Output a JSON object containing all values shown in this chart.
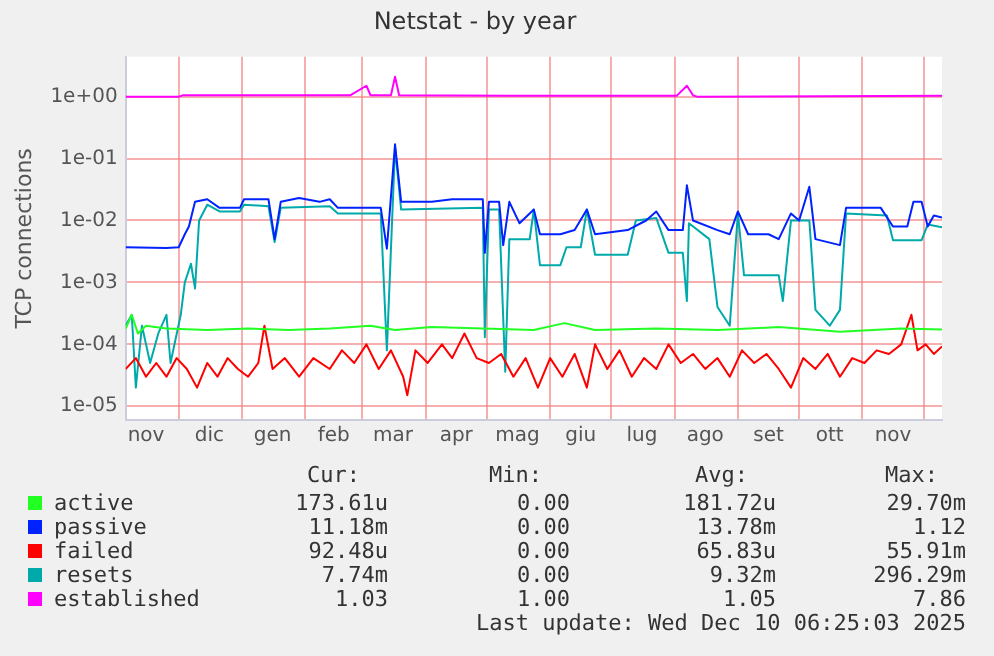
{
  "chart_data": {
    "type": "line",
    "title": "Netstat - by year",
    "ylabel": "TCP connections",
    "log": "y",
    "grid": true,
    "legend": "bottom",
    "marker": "none",
    "line_style": "solid",
    "xlim": [
      "2024-11-05",
      "2025-12-10"
    ],
    "xticks": [
      {
        "value": "2024-11-15",
        "label": "nov"
      },
      {
        "value": "2024-12-01",
        "label": null
      },
      {
        "value": "2024-12-16",
        "label": "dic"
      },
      {
        "value": "2025-01-01",
        "label": null
      },
      {
        "value": "2025-01-16",
        "label": "gen"
      },
      {
        "value": "2025-02-01",
        "label": null
      },
      {
        "value": "2025-02-15",
        "label": "feb"
      },
      {
        "value": "2025-03-01",
        "label": null
      },
      {
        "value": "2025-03-16",
        "label": "mar"
      },
      {
        "value": "2025-04-01",
        "label": null
      },
      {
        "value": "2025-04-16",
        "label": "apr"
      },
      {
        "value": "2025-05-01",
        "label": null
      },
      {
        "value": "2025-05-16",
        "label": "mag"
      },
      {
        "value": "2025-06-01",
        "label": null
      },
      {
        "value": "2025-06-16",
        "label": "giu"
      },
      {
        "value": "2025-07-01",
        "label": null
      },
      {
        "value": "2025-07-16",
        "label": "lug"
      },
      {
        "value": "2025-08-01",
        "label": null
      },
      {
        "value": "2025-08-16",
        "label": "ago"
      },
      {
        "value": "2025-09-01",
        "label": null
      },
      {
        "value": "2025-09-16",
        "label": "set"
      },
      {
        "value": "2025-10-01",
        "label": null
      },
      {
        "value": "2025-10-16",
        "label": "ott"
      },
      {
        "value": "2025-11-01",
        "label": null
      },
      {
        "value": "2025-11-16",
        "label": "nov"
      },
      {
        "value": "2025-12-01",
        "label": null
      }
    ],
    "ylim": [
      6e-06,
      4.4
    ],
    "yticks": [
      {
        "value": 1e-05,
        "label": "1e-05"
      },
      {
        "value": 0.0001,
        "label": "1e-04"
      },
      {
        "value": 0.001,
        "label": "1e-03"
      },
      {
        "value": 0.01,
        "label": "1e-02"
      },
      {
        "value": 0.1,
        "label": "1e-01"
      },
      {
        "value": 1,
        "label": "1e+00"
      }
    ],
    "series": [
      {
        "name": "active",
        "color": "#22ff22",
        "x": [
          "2024-11-05",
          "2024-11-08",
          "2024-11-11",
          "2024-11-15",
          "2024-11-25",
          "2024-12-15",
          "2025-01-04",
          "2025-01-24",
          "2025-02-13",
          "2025-03-05",
          "2025-03-17",
          "2025-04-04",
          "2025-04-29",
          "2025-05-24",
          "2025-06-08",
          "2025-06-23",
          "2025-07-23",
          "2025-08-22",
          "2025-09-21",
          "2025-10-21",
          "2025-11-20",
          "2025-12-10"
        ],
        "values": [
          0.00018,
          0.0003,
          0.00015,
          0.0002,
          0.00018,
          0.00017,
          0.00018,
          0.00017,
          0.00018,
          0.0002,
          0.00017,
          0.00019,
          0.00018,
          0.00017,
          0.00022,
          0.00017,
          0.00018,
          0.00017,
          0.00019,
          0.00016,
          0.00018,
          0.000174
        ]
      },
      {
        "name": "passive",
        "color": "#0022ff",
        "x": [
          "2024-11-05",
          "2024-11-25",
          "2024-12-01",
          "2024-12-04",
          "2024-12-06",
          "2024-12-09",
          "2024-12-15",
          "2024-12-21",
          "2024-12-31",
          "2025-01-02",
          "2025-01-14",
          "2025-01-17",
          "2025-01-20",
          "2025-01-29",
          "2025-02-08",
          "2025-02-13",
          "2025-02-17",
          "2025-03-10",
          "2025-03-13",
          "2025-03-17",
          "2025-03-20",
          "2025-04-04",
          "2025-04-14",
          "2025-04-29",
          "2025-04-30",
          "2025-05-02",
          "2025-05-07",
          "2025-05-09",
          "2025-05-12",
          "2025-05-17",
          "2025-05-24",
          "2025-05-27",
          "2025-06-06",
          "2025-06-13",
          "2025-06-19",
          "2025-06-23",
          "2025-07-09",
          "2025-07-18",
          "2025-07-23",
          "2025-07-29",
          "2025-08-05",
          "2025-08-07",
          "2025-08-10",
          "2025-08-22",
          "2025-08-28",
          "2025-09-01",
          "2025-09-06",
          "2025-09-16",
          "2025-09-21",
          "2025-09-27",
          "2025-10-01",
          "2025-10-06",
          "2025-10-09",
          "2025-10-21",
          "2025-10-24",
          "2025-11-10",
          "2025-11-16",
          "2025-11-23",
          "2025-11-26",
          "2025-11-30",
          "2025-12-03",
          "2025-12-06",
          "2025-12-10"
        ],
        "values": [
          0.0037,
          0.0036,
          0.0037,
          0.006,
          0.008,
          0.02,
          0.022,
          0.016,
          0.016,
          0.022,
          0.022,
          0.005,
          0.02,
          0.023,
          0.02,
          0.022,
          0.016,
          0.016,
          0.0035,
          0.17,
          0.02,
          0.02,
          0.022,
          0.022,
          0.003,
          0.02,
          0.02,
          0.004,
          0.02,
          0.009,
          0.015,
          0.006,
          0.006,
          0.007,
          0.015,
          0.006,
          0.007,
          0.01,
          0.014,
          0.007,
          0.007,
          0.037,
          0.01,
          0.007,
          0.006,
          0.014,
          0.006,
          0.006,
          0.005,
          0.013,
          0.01,
          0.035,
          0.005,
          0.004,
          0.016,
          0.016,
          0.008,
          0.008,
          0.02,
          0.02,
          0.008,
          0.012,
          0.0112
        ]
      },
      {
        "name": "failed",
        "color": "#ff0000",
        "x": [
          "2024-11-05",
          "2024-11-10",
          "2024-11-15",
          "2024-11-20",
          "2024-11-25",
          "2024-11-30",
          "2024-12-05",
          "2024-12-10",
          "2024-12-15",
          "2024-12-20",
          "2024-12-25",
          "2024-12-30",
          "2025-01-04",
          "2025-01-09",
          "2025-01-12",
          "2025-01-16",
          "2025-01-22",
          "2025-01-29",
          "2025-02-05",
          "2025-02-13",
          "2025-02-19",
          "2025-02-25",
          "2025-03-03",
          "2025-03-09",
          "2025-03-15",
          "2025-03-21",
          "2025-03-23",
          "2025-03-27",
          "2025-04-02",
          "2025-04-09",
          "2025-04-14",
          "2025-04-20",
          "2025-04-26",
          "2025-05-02",
          "2025-05-08",
          "2025-05-14",
          "2025-05-20",
          "2025-05-26",
          "2025-06-01",
          "2025-06-07",
          "2025-06-13",
          "2025-06-19",
          "2025-06-23",
          "2025-06-29",
          "2025-07-05",
          "2025-07-11",
          "2025-07-17",
          "2025-07-23",
          "2025-07-29",
          "2025-08-04",
          "2025-08-10",
          "2025-08-16",
          "2025-08-22",
          "2025-08-28",
          "2025-09-03",
          "2025-09-09",
          "2025-09-15",
          "2025-09-21",
          "2025-09-27",
          "2025-10-03",
          "2025-10-09",
          "2025-10-15",
          "2025-10-21",
          "2025-10-27",
          "2025-11-02",
          "2025-11-08",
          "2025-11-14",
          "2025-11-20",
          "2025-11-25",
          "2025-11-28",
          "2025-12-02",
          "2025-12-06",
          "2025-12-10"
        ],
        "values": [
          4e-05,
          6e-05,
          3e-05,
          5e-05,
          3e-05,
          6e-05,
          4e-05,
          2e-05,
          5e-05,
          3e-05,
          6e-05,
          4e-05,
          3e-05,
          5e-05,
          0.0002,
          4e-05,
          6e-05,
          3e-05,
          6e-05,
          4e-05,
          8e-05,
          5e-05,
          0.0001,
          4e-05,
          8e-05,
          3e-05,
          1.5e-05,
          8e-05,
          5e-05,
          0.0001,
          6e-05,
          0.00015,
          6e-05,
          5e-05,
          7e-05,
          3e-05,
          6e-05,
          2e-05,
          6e-05,
          3e-05,
          7e-05,
          2e-05,
          0.0001,
          4e-05,
          8e-05,
          3e-05,
          6e-05,
          4e-05,
          0.0001,
          5e-05,
          7e-05,
          4e-05,
          6e-05,
          3e-05,
          8e-05,
          5e-05,
          7e-05,
          4e-05,
          2e-05,
          6e-05,
          4e-05,
          7e-05,
          3e-05,
          6e-05,
          5e-05,
          8e-05,
          7e-05,
          0.0001,
          0.0003,
          8e-05,
          0.0001,
          7e-05,
          9.25e-05
        ]
      },
      {
        "name": "resets",
        "color": "#00aaaa",
        "x": [
          "2024-11-05",
          "2024-11-08",
          "2024-11-10",
          "2024-11-13",
          "2024-11-17",
          "2024-11-21",
          "2024-11-25",
          "2024-11-27",
          "2024-12-02",
          "2024-12-04",
          "2024-12-07",
          "2024-12-09",
          "2024-12-11",
          "2024-12-15",
          "2024-12-21",
          "2024-12-31",
          "2025-01-02",
          "2025-01-14",
          "2025-01-17",
          "2025-01-20",
          "2025-02-13",
          "2025-02-17",
          "2025-03-10",
          "2025-03-13",
          "2025-03-17",
          "2025-03-20",
          "2025-04-29",
          "2025-04-30",
          "2025-05-02",
          "2025-05-07",
          "2025-05-10",
          "2025-05-12",
          "2025-05-22",
          "2025-05-24",
          "2025-05-27",
          "2025-06-06",
          "2025-06-09",
          "2025-06-16",
          "2025-06-19",
          "2025-06-23",
          "2025-07-09",
          "2025-07-13",
          "2025-07-23",
          "2025-07-29",
          "2025-08-05",
          "2025-08-07",
          "2025-08-08",
          "2025-08-18",
          "2025-08-22",
          "2025-08-28",
          "2025-09-01",
          "2025-09-04",
          "2025-09-21",
          "2025-09-23",
          "2025-09-27",
          "2025-10-06",
          "2025-10-09",
          "2025-10-16",
          "2025-10-21",
          "2025-10-24",
          "2025-11-13",
          "2025-11-16",
          "2025-11-30",
          "2025-12-03",
          "2025-12-10"
        ],
        "values": [
          0.0002,
          0.0003,
          2e-05,
          0.0002,
          5e-05,
          0.00015,
          0.0003,
          5e-05,
          0.0003,
          0.001,
          0.002,
          0.0008,
          0.01,
          0.018,
          0.014,
          0.014,
          0.018,
          0.017,
          0.0045,
          0.016,
          0.017,
          0.013,
          0.013,
          8e-05,
          0.15,
          0.015,
          0.016,
          0.00013,
          0.015,
          0.015,
          3.6e-05,
          0.005,
          0.005,
          0.015,
          0.0019,
          0.0019,
          0.0037,
          0.0037,
          0.015,
          0.0028,
          0.0028,
          0.01,
          0.011,
          0.003,
          0.003,
          0.0005,
          0.009,
          0.005,
          0.0004,
          0.0002,
          0.013,
          0.0013,
          0.0013,
          0.0005,
          0.01,
          0.01,
          0.00036,
          0.0002,
          0.00036,
          0.013,
          0.012,
          0.0048,
          0.0048,
          0.0086,
          0.00774
        ]
      },
      {
        "name": "established",
        "color": "#ff00ff",
        "x": [
          "2024-11-05",
          "2024-12-01",
          "2024-12-03",
          "2025-01-04",
          "2025-02-23",
          "2025-03-03",
          "2025-03-05",
          "2025-03-15",
          "2025-03-17",
          "2025-03-19",
          "2025-05-24",
          "2025-08-02",
          "2025-08-07",
          "2025-08-10",
          "2025-08-12",
          "2025-12-10"
        ],
        "values": [
          1.0,
          1.0,
          1.05,
          1.05,
          1.05,
          1.5,
          1.05,
          1.05,
          2.1,
          1.05,
          1.03,
          1.03,
          1.5,
          1.05,
          1.0,
          1.03
        ]
      }
    ],
    "annotations": [
      "Cur:",
      "Min:",
      "Avg:",
      "Max:",
      "173.61u",
      "0.00",
      "181.72u",
      "29.70m",
      "11.18m",
      "0.00",
      "13.78m",
      "1.12",
      "92.48u",
      "0.00",
      "65.83u",
      "55.91m",
      "7.74m",
      "0.00",
      "9.32m",
      "296.29m",
      "1.03",
      "1.00",
      "1.05",
      "7.86",
      "Last update: Wed Dec 10 06:25:03 2025"
    ]
  }
}
